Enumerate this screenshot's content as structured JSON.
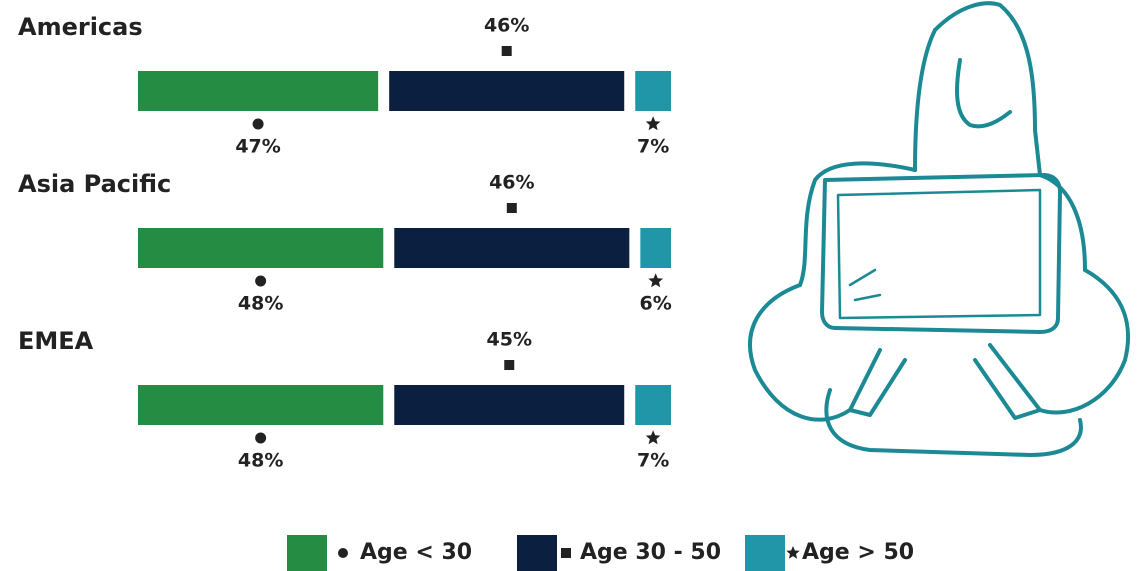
{
  "chart_data": {
    "type": "stacked-bar",
    "categories": [
      "Americas",
      "Asia Pacific",
      "EMEA"
    ],
    "series": [
      {
        "name": "Age < 30",
        "color": "#258c44",
        "values": [
          47,
          48,
          48
        ],
        "value_labels": [
          "47%",
          "48%",
          "48%"
        ]
      },
      {
        "name": "Age 30 - 50",
        "color": "#0b1f40",
        "values": [
          46,
          46,
          45
        ],
        "value_labels": [
          "46%",
          "46%",
          "45%"
        ]
      },
      {
        "name": "Age > 50",
        "color": "#2196a8",
        "values": [
          7,
          6,
          7
        ],
        "value_labels": [
          "7%",
          "6%",
          "7%"
        ]
      }
    ],
    "legend": "bottom"
  }
}
